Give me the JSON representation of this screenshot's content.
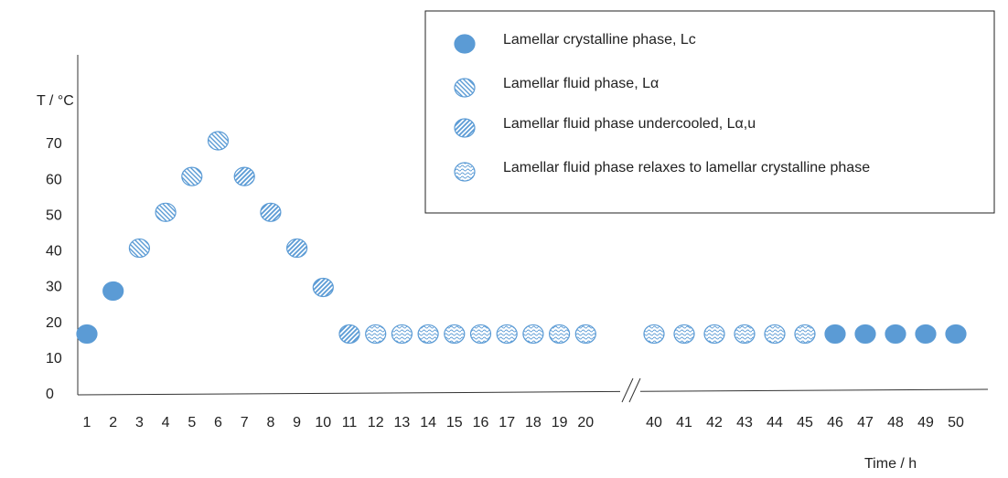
{
  "chart_data": {
    "type": "scatter",
    "ylabel": "T / °C",
    "xlabel": "Time / h",
    "categories": [
      "1",
      "2",
      "3",
      "4",
      "5",
      "6",
      "7",
      "8",
      "9",
      "10",
      "11",
      "12",
      "13",
      "14",
      "15",
      "16",
      "17",
      "18",
      "19",
      "20",
      "40",
      "41",
      "42",
      "43",
      "44",
      "45",
      "46",
      "47",
      "48",
      "49",
      "50"
    ],
    "ylim": [
      0,
      95
    ],
    "yticks": [
      0,
      10,
      20,
      30,
      40,
      50,
      60,
      70
    ],
    "axis_break": true,
    "series": [
      {
        "name": "Lamellar crystalline phase, Lc",
        "color": "#5b9bd5",
        "pattern": "solid",
        "values": [
          17,
          29,
          null,
          null,
          null,
          null,
          null,
          null,
          null,
          null,
          null,
          null,
          null,
          null,
          null,
          null,
          null,
          null,
          null,
          null,
          null,
          null,
          null,
          null,
          null,
          null,
          17,
          17,
          17,
          17,
          17
        ]
      },
      {
        "name": "Lamellar fluid phase, Lα",
        "color": "#5b9bd5",
        "pattern": "backslash",
        "values": [
          null,
          null,
          41,
          51,
          61,
          71,
          null,
          null,
          null,
          null,
          null,
          null,
          null,
          null,
          null,
          null,
          null,
          null,
          null,
          null,
          null,
          null,
          null,
          null,
          null,
          null,
          null,
          null,
          null,
          null,
          null
        ]
      },
      {
        "name": "Lamellar fluid phase undercooled, Lα,u",
        "color": "#5b9bd5",
        "pattern": "slash",
        "values": [
          null,
          null,
          null,
          null,
          null,
          null,
          61,
          51,
          41,
          30,
          17,
          null,
          null,
          null,
          null,
          null,
          null,
          null,
          null,
          null,
          null,
          null,
          null,
          null,
          null,
          null,
          null,
          null,
          null,
          null,
          null
        ]
      },
      {
        "name": "Lamellar fluid phase relaxes to lamellar crystalline phase",
        "color": "#5b9bd5",
        "pattern": "wave",
        "values": [
          null,
          null,
          null,
          null,
          null,
          null,
          null,
          null,
          null,
          null,
          null,
          17,
          17,
          17,
          17,
          17,
          17,
          17,
          17,
          17,
          17,
          17,
          17,
          17,
          17,
          17,
          null,
          null,
          null,
          null,
          null
        ]
      }
    ]
  }
}
